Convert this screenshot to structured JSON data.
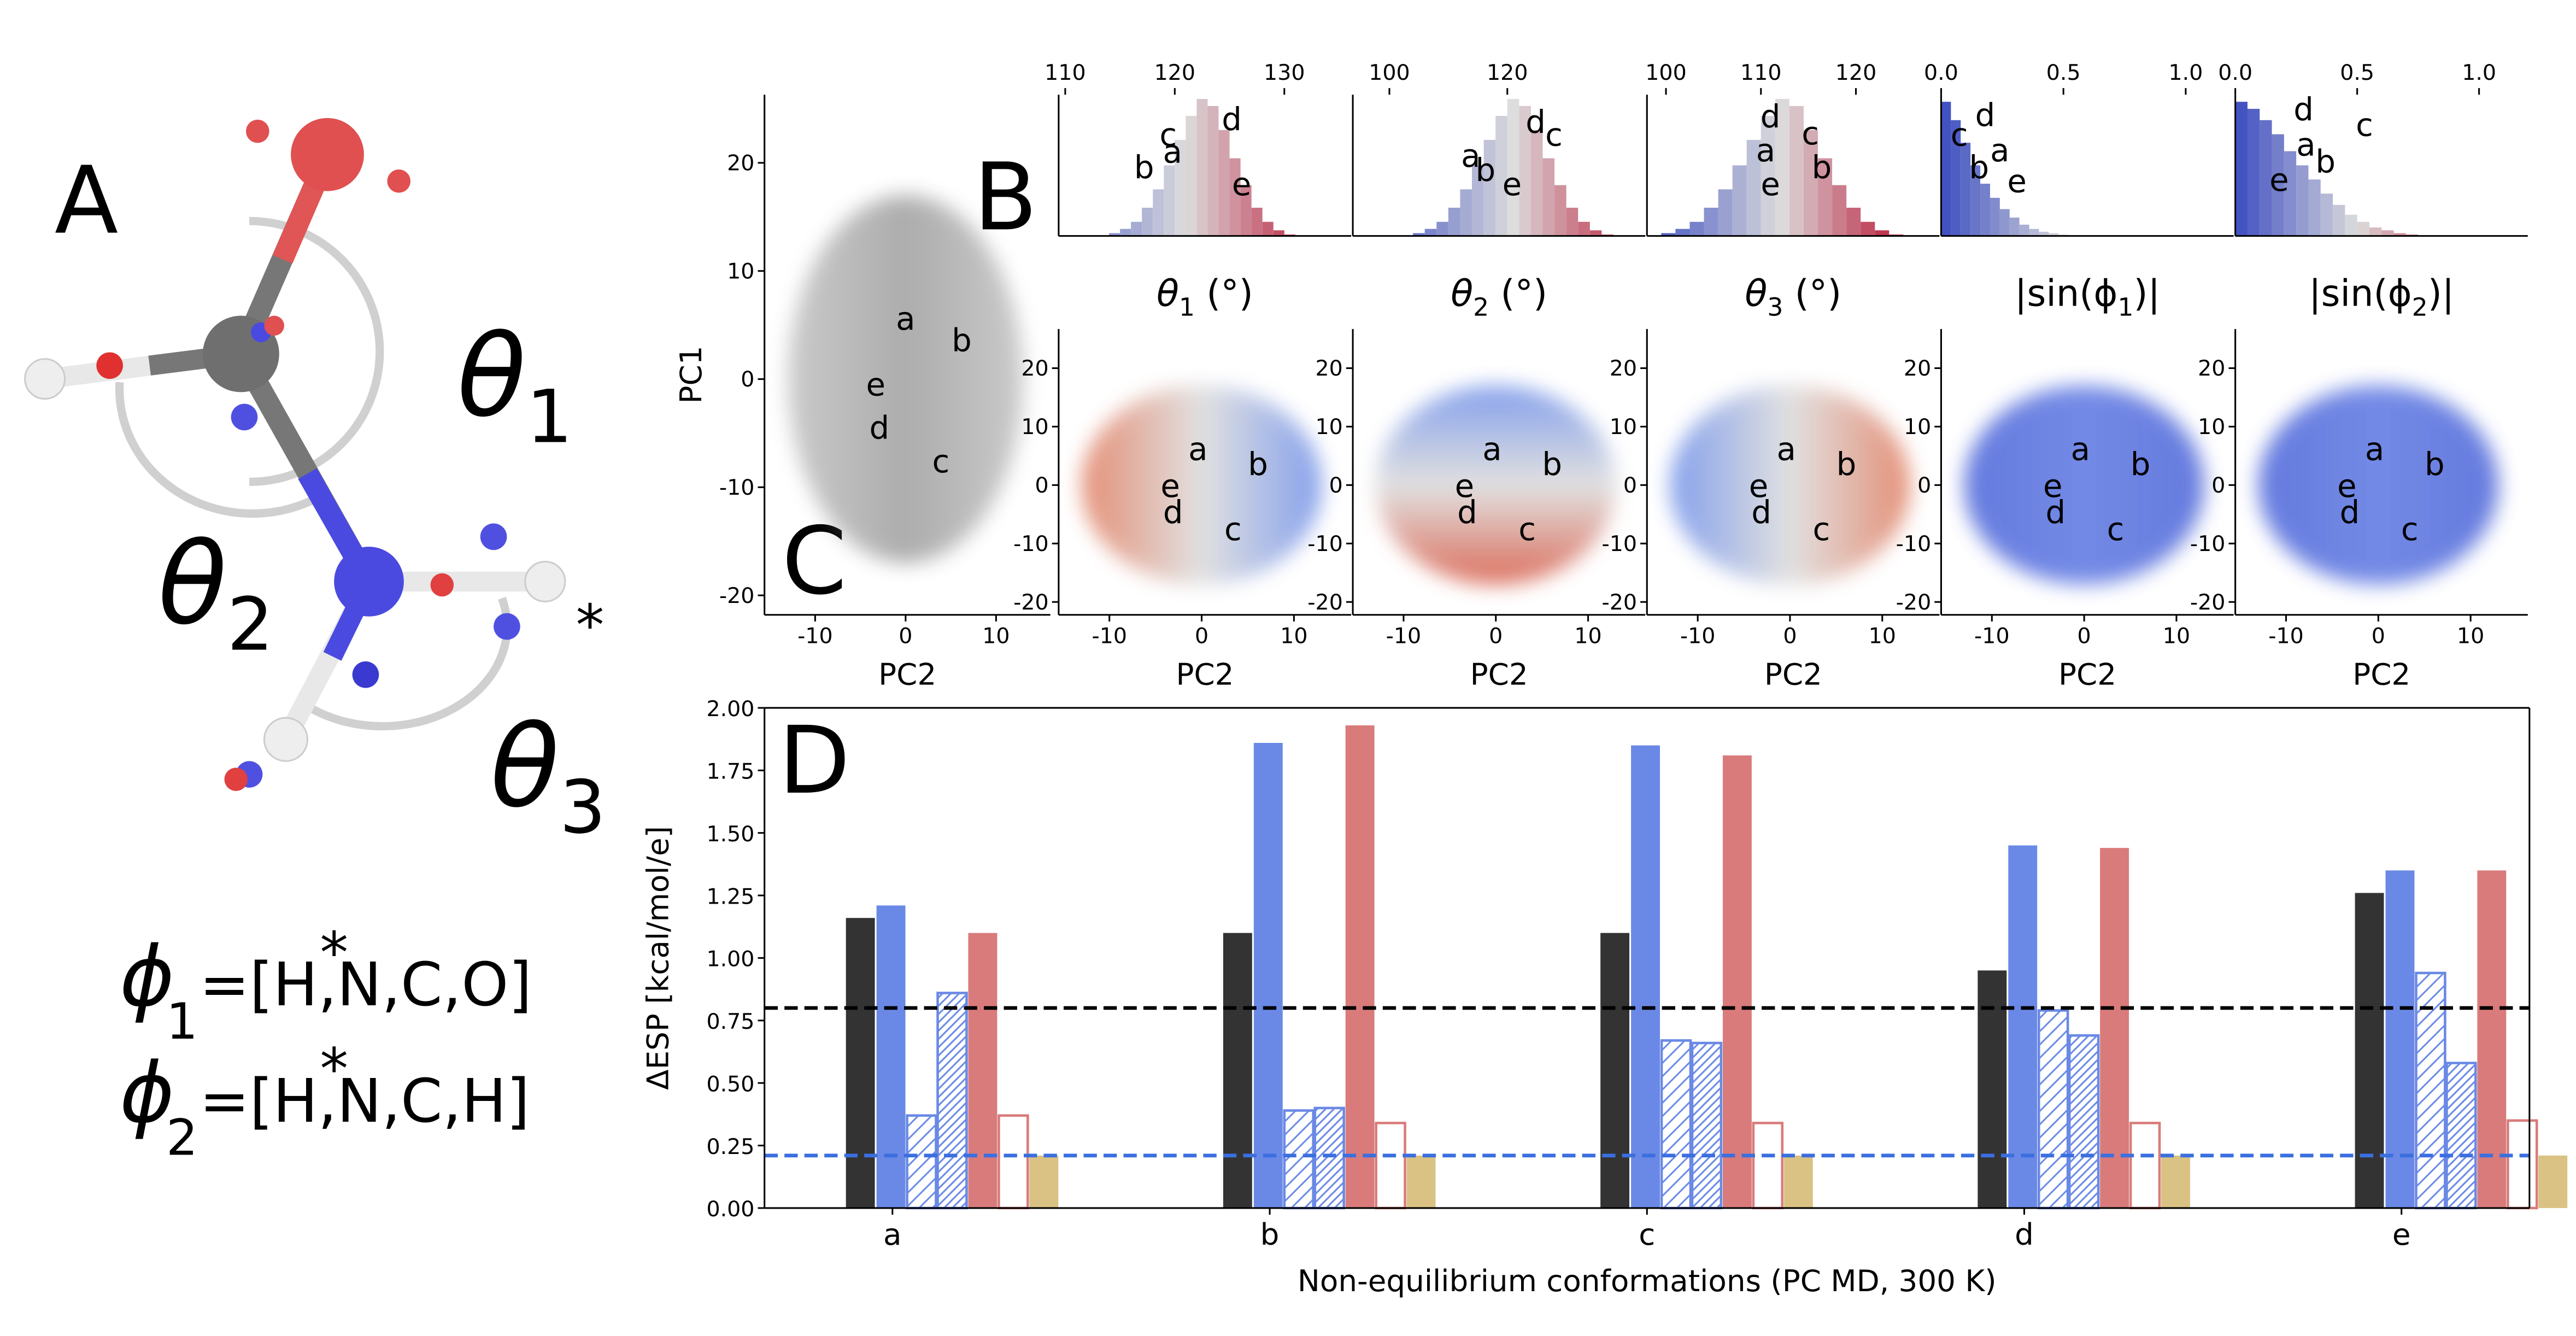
{
  "panel_labels": [
    "A",
    "B",
    "C",
    "D"
  ],
  "molecule": {
    "theta_labels": [
      [
        "θ",
        "1"
      ],
      [
        "θ",
        "2"
      ],
      [
        "θ",
        "3"
      ]
    ],
    "star": "*",
    "phi_definitions": [
      {
        "symbol": "ϕ",
        "sub": "1",
        "star": "*",
        "text": "=[H,N,C,O]"
      },
      {
        "symbol": "ϕ",
        "sub": "2",
        "star": "*",
        "text": "=[H,N,C,H]"
      }
    ]
  },
  "chart_data": [
    {
      "type": "scatter",
      "xlabel": "PC2",
      "ylabel": "PC1",
      "xlim": [
        -15.6,
        16
      ],
      "ylim": [
        -21.8,
        26.3
      ],
      "xticks": [
        -10,
        0,
        10
      ],
      "yticks": [
        -20,
        -10,
        0,
        10,
        20
      ],
      "cloud_colors": [
        "#8a8a8a",
        "#4a4a4a",
        "#8a8a8a"
      ],
      "cloud_direction": "horizontal",
      "annotations": [
        {
          "text": "a",
          "x": 0,
          "y": 5.5
        },
        {
          "text": "b",
          "x": 6.2,
          "y": 3.5
        },
        {
          "text": "e",
          "x": -3.3,
          "y": -0.6
        },
        {
          "text": "d",
          "x": -2.9,
          "y": -4.6
        },
        {
          "text": "c",
          "x": 3.9,
          "y": -7.7
        }
      ]
    },
    {
      "type": "scatter",
      "title": [
        "θ",
        "1",
        " (°)"
      ],
      "xlabel": "PC2",
      "xlim": [
        -15.5,
        16.2
      ],
      "ylim": [
        -22.2,
        26.7
      ],
      "xticks": [
        -10,
        0,
        10
      ],
      "yticks": [
        -20,
        -10,
        0,
        10,
        20
      ],
      "cloud_colors": [
        "#e07b5e",
        "#dcdcdc",
        "#6f8fe8"
      ],
      "cloud_direction": "horizontal",
      "annotations": [
        {
          "text": "a",
          "x": -0.4,
          "y": 6.0
        },
        {
          "text": "b",
          "x": 6.1,
          "y": 3.4
        },
        {
          "text": "e",
          "x": -3.4,
          "y": -0.3
        },
        {
          "text": "d",
          "x": -3.1,
          "y": -4.8
        },
        {
          "text": "c",
          "x": 3.4,
          "y": -7.7
        }
      ]
    },
    {
      "type": "scatter",
      "title": [
        "θ",
        "2",
        " (°)"
      ],
      "xlabel": "PC2",
      "xlim": [
        -15.5,
        16.2
      ],
      "ylim": [
        -22.2,
        26.7
      ],
      "xticks": [
        -10,
        0,
        10
      ],
      "yticks": [
        -20,
        -10,
        0,
        10,
        20
      ],
      "cloud_colors": [
        "#6f8fe8",
        "#dcdcdc",
        "#d6553f"
      ],
      "cloud_direction": "vertical",
      "annotations": [
        {
          "text": "a",
          "x": -0.4,
          "y": 6.0
        },
        {
          "text": "b",
          "x": 6.1,
          "y": 3.4
        },
        {
          "text": "e",
          "x": -3.4,
          "y": -0.3
        },
        {
          "text": "d",
          "x": -3.1,
          "y": -4.8
        },
        {
          "text": "c",
          "x": 3.4,
          "y": -7.7
        }
      ]
    },
    {
      "type": "scatter",
      "title": [
        "θ",
        "3",
        " (°)"
      ],
      "xlabel": "PC2",
      "xlim": [
        -15.5,
        16.2
      ],
      "ylim": [
        -22.2,
        26.7
      ],
      "xticks": [
        -10,
        0,
        10
      ],
      "yticks": [
        -20,
        -10,
        0,
        10,
        20
      ],
      "cloud_colors": [
        "#6f8fe8",
        "#dcdcdc",
        "#e07b5e"
      ],
      "cloud_direction": "horizontal",
      "annotations": [
        {
          "text": "a",
          "x": -0.4,
          "y": 6.0
        },
        {
          "text": "b",
          "x": 6.1,
          "y": 3.4
        },
        {
          "text": "e",
          "x": -3.4,
          "y": -0.3
        },
        {
          "text": "d",
          "x": -3.1,
          "y": -4.8
        },
        {
          "text": "c",
          "x": 3.4,
          "y": -7.7
        }
      ]
    },
    {
      "type": "scatter",
      "title": [
        "|sin(ϕ",
        "1",
        ")|"
      ],
      "xlabel": "PC2",
      "xlim": [
        -15.5,
        16.2
      ],
      "ylim": [
        -22.2,
        26.7
      ],
      "xticks": [
        -10,
        0,
        10
      ],
      "yticks": [
        -20,
        -10,
        0,
        10,
        20
      ],
      "cloud_colors": [
        "#4a63d8",
        "#5b76e2",
        "#4a63d8"
      ],
      "cloud_direction": "horizontal",
      "annotations": [
        {
          "text": "a",
          "x": -0.4,
          "y": 6.0
        },
        {
          "text": "b",
          "x": 6.1,
          "y": 3.4
        },
        {
          "text": "e",
          "x": -3.4,
          "y": -0.3
        },
        {
          "text": "d",
          "x": -3.1,
          "y": -4.8
        },
        {
          "text": "c",
          "x": 3.4,
          "y": -7.7
        }
      ]
    },
    {
      "type": "scatter",
      "title": [
        "|sin(ϕ",
        "2",
        ")|"
      ],
      "xlabel": "PC2",
      "xlim": [
        -15.5,
        16.2
      ],
      "ylim": [
        -22.2,
        26.7
      ],
      "xticks": [
        -10,
        0,
        10
      ],
      "yticks": [
        -20,
        -10,
        0,
        10,
        20
      ],
      "cloud_colors": [
        "#4a63d8",
        "#5b76e2",
        "#4a63d8"
      ],
      "cloud_direction": "horizontal",
      "annotations": [
        {
          "text": "a",
          "x": -0.4,
          "y": 6.0
        },
        {
          "text": "b",
          "x": 6.1,
          "y": 3.4
        },
        {
          "text": "e",
          "x": -3.4,
          "y": -0.3
        },
        {
          "text": "d",
          "x": -3.1,
          "y": -4.8
        },
        {
          "text": "c",
          "x": 3.4,
          "y": -7.7
        }
      ]
    },
    {
      "type": "histogram",
      "xlim": [
        109.4,
        136.1
      ],
      "ylim": [
        0,
        1
      ],
      "xticks": [
        110,
        120,
        130
      ],
      "colormap": [
        "#3b4cc0",
        "#dddddd",
        "#b40426"
      ],
      "clim": [
        108,
        134
      ],
      "bins": [
        114,
        115,
        116,
        117,
        118,
        119,
        120,
        121,
        122,
        123,
        124,
        125,
        126,
        127,
        128,
        129,
        130,
        131
      ],
      "counts": [
        0.02,
        0.05,
        0.1,
        0.2,
        0.33,
        0.5,
        0.68,
        0.85,
        0.97,
        0.92,
        0.75,
        0.55,
        0.36,
        0.2,
        0.1,
        0.04,
        0.01
      ],
      "annotations": [
        {
          "text": "b",
          "x": 117.2,
          "y": 0.48
        },
        {
          "text": "a",
          "x": 119.8,
          "y": 0.59
        },
        {
          "text": "c",
          "x": 119.4,
          "y": 0.71
        },
        {
          "text": "d",
          "x": 125.2,
          "y": 0.82
        },
        {
          "text": "e",
          "x": 126.1,
          "y": 0.36
        }
      ]
    },
    {
      "type": "histogram",
      "xlim": [
        93.8,
        143.4
      ],
      "ylim": [
        0,
        1
      ],
      "xticks": [
        100,
        120
      ],
      "colormap": [
        "#3b4cc0",
        "#dddddd",
        "#b40426"
      ],
      "clim": [
        98,
        144
      ],
      "bins": [
        104,
        106,
        108,
        110,
        112,
        114,
        116,
        118,
        120,
        122,
        124,
        126,
        128,
        130,
        132,
        134,
        136,
        138
      ],
      "counts": [
        0.02,
        0.05,
        0.1,
        0.2,
        0.33,
        0.5,
        0.68,
        0.85,
        0.97,
        0.92,
        0.75,
        0.55,
        0.36,
        0.2,
        0.1,
        0.04,
        0.01
      ],
      "annotations": [
        {
          "text": "a",
          "x": 113.8,
          "y": 0.56
        },
        {
          "text": "b",
          "x": 116.3,
          "y": 0.46
        },
        {
          "text": "e",
          "x": 120.8,
          "y": 0.36
        },
        {
          "text": "d",
          "x": 124.8,
          "y": 0.8
        },
        {
          "text": "c",
          "x": 127.9,
          "y": 0.71
        }
      ]
    },
    {
      "type": "histogram",
      "xlim": [
        98,
        128.8
      ],
      "ylim": [
        0,
        1
      ],
      "xticks": [
        100,
        110,
        120
      ],
      "colormap": [
        "#3b4cc0",
        "#dddddd",
        "#b40426"
      ],
      "clim": [
        98,
        126
      ],
      "bins": [
        99.5,
        101,
        102.5,
        104,
        105.5,
        107,
        108.5,
        110,
        111.5,
        113,
        114.5,
        116,
        117.5,
        119,
        120.5,
        122,
        123.5,
        125
      ],
      "counts": [
        0.02,
        0.05,
        0.1,
        0.2,
        0.33,
        0.5,
        0.68,
        0.85,
        0.97,
        0.92,
        0.75,
        0.55,
        0.36,
        0.2,
        0.1,
        0.04,
        0.01
      ],
      "annotations": [
        {
          "text": "d",
          "x": 111.0,
          "y": 0.84
        },
        {
          "text": "a",
          "x": 110.5,
          "y": 0.6
        },
        {
          "text": "e",
          "x": 111.0,
          "y": 0.36
        },
        {
          "text": "c",
          "x": 115.2,
          "y": 0.72
        },
        {
          "text": "b",
          "x": 116.4,
          "y": 0.48
        }
      ]
    },
    {
      "type": "histogram",
      "xlim": [
        0,
        1.196
      ],
      "ylim": [
        0,
        1
      ],
      "xticks": [
        {
          "value": 0,
          "label": "0.0"
        },
        {
          "value": 0.5,
          "label": "0.5"
        },
        {
          "value": 1,
          "label": "1.0"
        }
      ],
      "colormap": [
        "#3b4cc0",
        "#dddddd",
        "#b40426"
      ],
      "clim": [
        0,
        1
      ],
      "bins": [
        0,
        0.04,
        0.08,
        0.12,
        0.16,
        0.2,
        0.24,
        0.28,
        0.32,
        0.36,
        0.4,
        0.44,
        0.48,
        0.52,
        0.56,
        0.6
      ],
      "counts": [
        0.95,
        0.82,
        0.66,
        0.5,
        0.37,
        0.27,
        0.19,
        0.13,
        0.08,
        0.05,
        0.03,
        0.02,
        0.01,
        0.005,
        0.002
      ],
      "annotations": [
        {
          "text": "c",
          "x": 0.074,
          "y": 0.71
        },
        {
          "text": "d",
          "x": 0.18,
          "y": 0.85
        },
        {
          "text": "a",
          "x": 0.24,
          "y": 0.6
        },
        {
          "text": "b",
          "x": 0.155,
          "y": 0.48
        },
        {
          "text": "e",
          "x": 0.31,
          "y": 0.38
        }
      ]
    },
    {
      "type": "histogram",
      "xlim": [
        0,
        1.2
      ],
      "ylim": [
        0,
        1
      ],
      "xticks": [
        {
          "value": 0,
          "label": "0.0"
        },
        {
          "value": 0.5,
          "label": "0.5"
        },
        {
          "value": 1,
          "label": "1.0"
        }
      ],
      "colormap": [
        "#3b4cc0",
        "#dddddd",
        "#b40426"
      ],
      "clim": [
        0,
        1
      ],
      "bins": [
        0,
        0.05,
        0.1,
        0.15,
        0.2,
        0.25,
        0.3,
        0.35,
        0.4,
        0.45,
        0.5,
        0.55,
        0.6,
        0.65,
        0.7,
        0.75,
        0.8
      ],
      "counts": [
        0.95,
        0.9,
        0.82,
        0.72,
        0.6,
        0.5,
        0.4,
        0.3,
        0.22,
        0.15,
        0.1,
        0.06,
        0.04,
        0.02,
        0.01,
        0.005
      ],
      "annotations": [
        {
          "text": "d",
          "x": 0.28,
          "y": 0.89
        },
        {
          "text": "c",
          "x": 0.53,
          "y": 0.78
        },
        {
          "text": "a",
          "x": 0.29,
          "y": 0.64
        },
        {
          "text": "b",
          "x": 0.37,
          "y": 0.52
        },
        {
          "text": "e",
          "x": 0.18,
          "y": 0.39
        }
      ]
    },
    {
      "type": "bar",
      "xlabel": "Non-equilibrium conformations (PC MD, 300 K)",
      "ylabel": "ΔESP [kcal/mol/e]",
      "categories": [
        "a",
        "b",
        "c",
        "d",
        "e"
      ],
      "ylim": [
        0,
        2
      ],
      "yticks": [
        {
          "value": 0,
          "label": "0.00"
        },
        {
          "value": 0.25,
          "label": "0.25"
        },
        {
          "value": 0.5,
          "label": "0.50"
        },
        {
          "value": 0.75,
          "label": "0.75"
        },
        {
          "value": 1,
          "label": "1.00"
        },
        {
          "value": 1.25,
          "label": "1.25"
        },
        {
          "value": 1.5,
          "label": "1.50"
        },
        {
          "value": 1.75,
          "label": "1.75"
        },
        {
          "value": 2,
          "label": "2.00"
        }
      ],
      "series": [
        {
          "color": "#333333",
          "style": "solid",
          "values": [
            1.16,
            1.1,
            1.1,
            0.95,
            1.26
          ]
        },
        {
          "color": "#6a89e6",
          "style": "solid",
          "values": [
            1.21,
            1.86,
            1.85,
            1.45,
            1.35
          ]
        },
        {
          "color": "#6a89e6",
          "style": "hatch",
          "values": [
            0.37,
            0.39,
            0.67,
            0.79,
            0.94
          ]
        },
        {
          "color": "#6a89e6",
          "style": "dense-hatch",
          "values": [
            0.86,
            0.4,
            0.66,
            0.69,
            0.58
          ]
        },
        {
          "color": "#d97b7b",
          "style": "solid",
          "values": [
            1.1,
            1.93,
            1.81,
            1.44,
            1.35
          ]
        },
        {
          "color": "#d97b7b",
          "style": "outline",
          "values": [
            0.37,
            0.34,
            0.34,
            0.34,
            0.35
          ]
        },
        {
          "color": "#d9c283",
          "style": "solid",
          "values": [
            0.21,
            0.21,
            0.21,
            0.21,
            0.21
          ]
        }
      ],
      "hlines": [
        {
          "value": 0.8,
          "color": "#000000"
        },
        {
          "value": 0.21,
          "color": "#3b6fe0"
        }
      ]
    }
  ]
}
